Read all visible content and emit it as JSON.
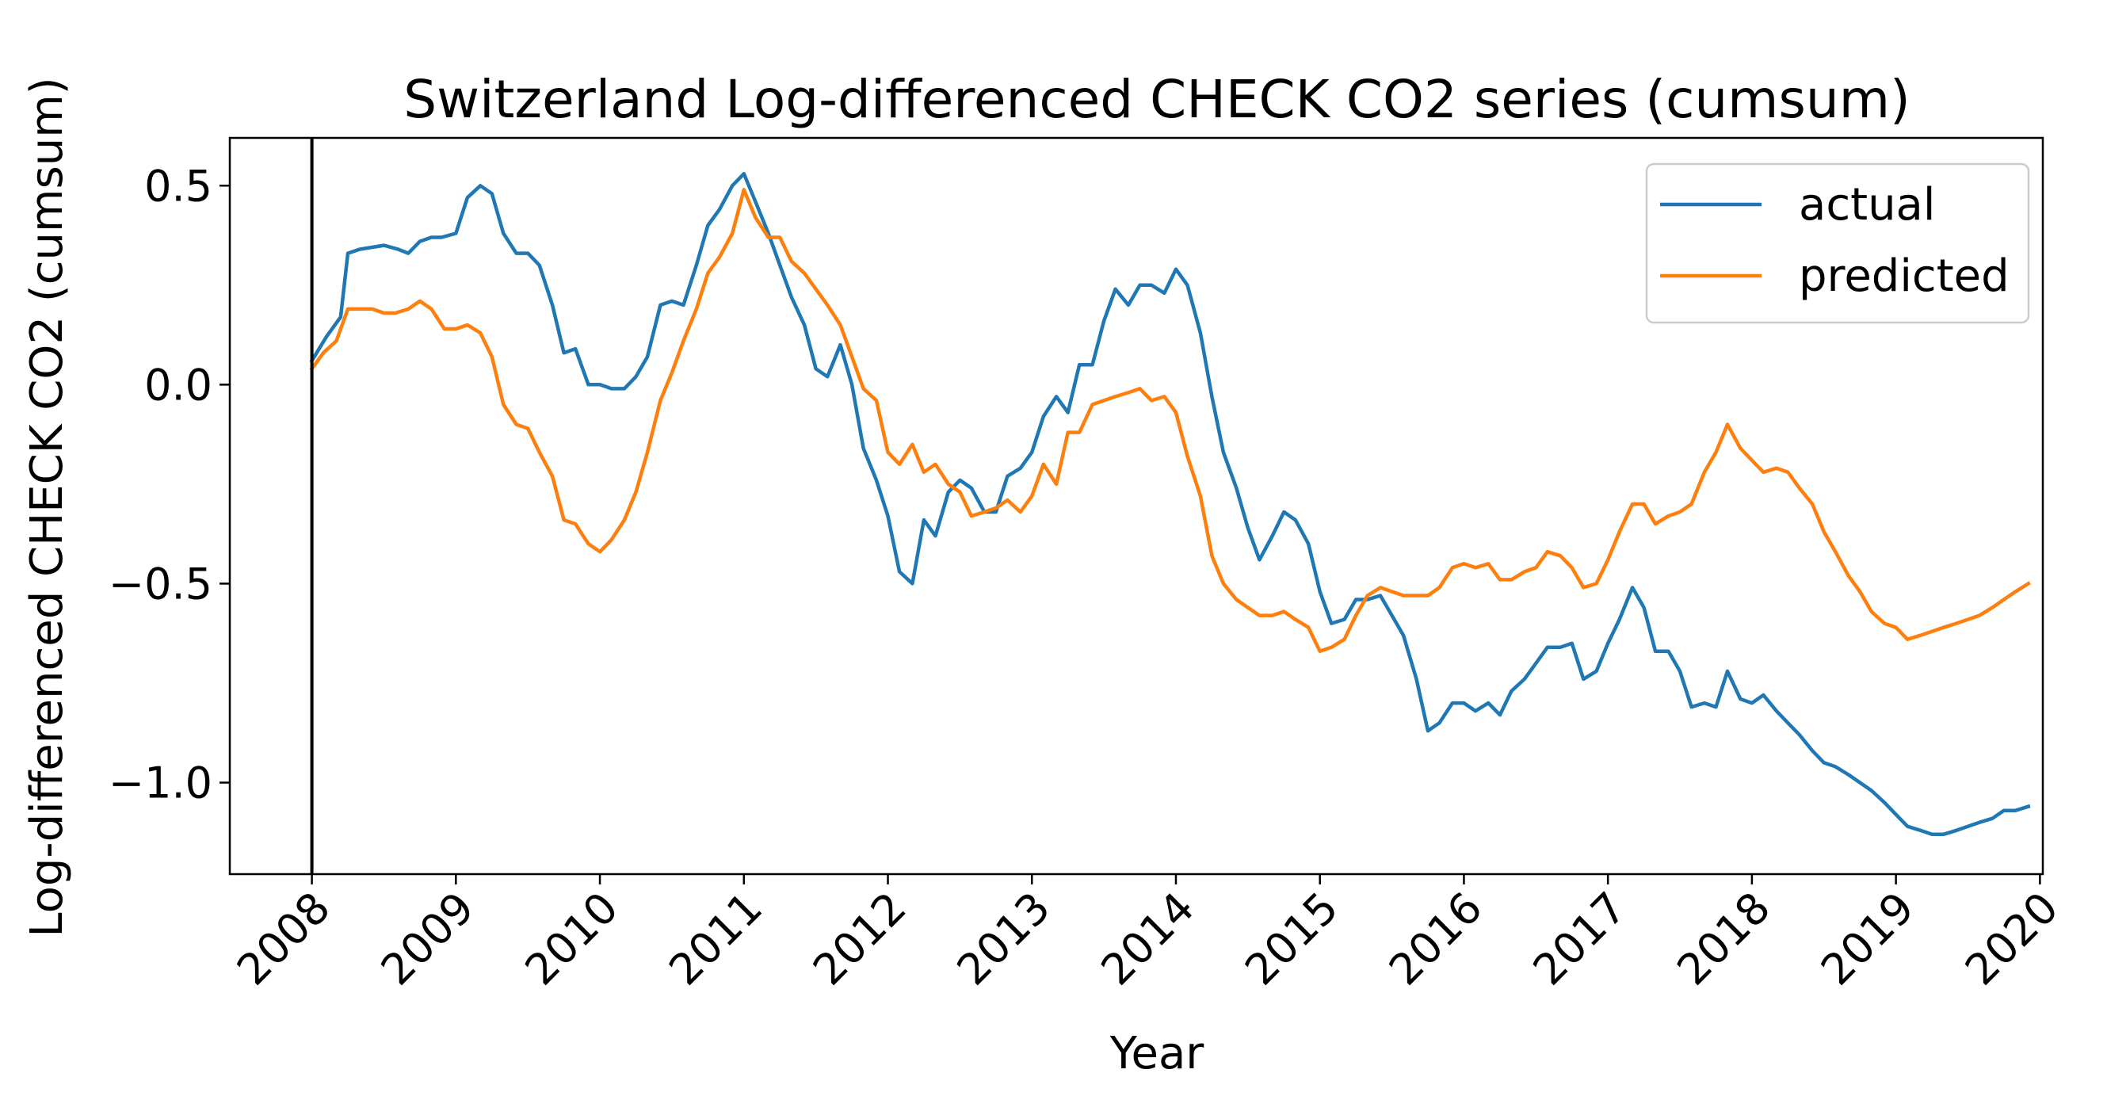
{
  "chart_data": {
    "type": "line",
    "title": "Switzerland Log-differenced CHECK CO2 series (cumsum)",
    "xlabel": "Year",
    "ylabel": "Log-differenced CHECK CO2 (cumsum)",
    "xlim": [
      2007.43,
      2020.02
    ],
    "ylim": [
      -1.23,
      0.62
    ],
    "x_ticks": [
      "2008",
      "2009",
      "2010",
      "2011",
      "2012",
      "2013",
      "2014",
      "2015",
      "2016",
      "2017",
      "2018",
      "2019",
      "2020"
    ],
    "y_ticks": [
      0.5,
      0.0,
      -0.5,
      -1.0
    ],
    "y_tick_labels": [
      "0.5",
      "0.0",
      "−0.5",
      "−1.0"
    ],
    "vertical_marker_x": 2008.0,
    "legend_position": "upper right",
    "series": [
      {
        "name": "actual",
        "color": "#1f77b4",
        "points": [
          [
            2008.0,
            0.06
          ],
          [
            2008.1,
            0.12
          ],
          [
            2008.2,
            0.17
          ],
          [
            2008.25,
            0.33
          ],
          [
            2008.33,
            0.34
          ],
          [
            2008.5,
            0.35
          ],
          [
            2008.6,
            0.34
          ],
          [
            2008.67,
            0.33
          ],
          [
            2008.75,
            0.36
          ],
          [
            2008.83,
            0.37
          ],
          [
            2008.9,
            0.37
          ],
          [
            2009.0,
            0.38
          ],
          [
            2009.08,
            0.47
          ],
          [
            2009.17,
            0.5
          ],
          [
            2009.25,
            0.48
          ],
          [
            2009.33,
            0.38
          ],
          [
            2009.42,
            0.33
          ],
          [
            2009.5,
            0.33
          ],
          [
            2009.58,
            0.3
          ],
          [
            2009.67,
            0.2
          ],
          [
            2009.75,
            0.08
          ],
          [
            2009.83,
            0.09
          ],
          [
            2009.92,
            0.0
          ],
          [
            2010.0,
            0.0
          ],
          [
            2010.08,
            -0.01
          ],
          [
            2010.17,
            -0.01
          ],
          [
            2010.25,
            0.02
          ],
          [
            2010.33,
            0.07
          ],
          [
            2010.42,
            0.2
          ],
          [
            2010.5,
            0.21
          ],
          [
            2010.58,
            0.2
          ],
          [
            2010.67,
            0.3
          ],
          [
            2010.75,
            0.4
          ],
          [
            2010.83,
            0.44
          ],
          [
            2010.92,
            0.5
          ],
          [
            2011.0,
            0.53
          ],
          [
            2011.08,
            0.46
          ],
          [
            2011.17,
            0.38
          ],
          [
            2011.25,
            0.3
          ],
          [
            2011.33,
            0.22
          ],
          [
            2011.42,
            0.15
          ],
          [
            2011.5,
            0.04
          ],
          [
            2011.58,
            0.02
          ],
          [
            2011.67,
            0.1
          ],
          [
            2011.75,
            0.0
          ],
          [
            2011.83,
            -0.16
          ],
          [
            2011.92,
            -0.24
          ],
          [
            2012.0,
            -0.33
          ],
          [
            2012.08,
            -0.47
          ],
          [
            2012.17,
            -0.5
          ],
          [
            2012.25,
            -0.34
          ],
          [
            2012.33,
            -0.38
          ],
          [
            2012.42,
            -0.27
          ],
          [
            2012.5,
            -0.24
          ],
          [
            2012.58,
            -0.26
          ],
          [
            2012.67,
            -0.32
          ],
          [
            2012.75,
            -0.32
          ],
          [
            2012.83,
            -0.23
          ],
          [
            2012.92,
            -0.21
          ],
          [
            2013.0,
            -0.17
          ],
          [
            2013.08,
            -0.08
          ],
          [
            2013.17,
            -0.03
          ],
          [
            2013.25,
            -0.07
          ],
          [
            2013.33,
            0.05
          ],
          [
            2013.42,
            0.05
          ],
          [
            2013.5,
            0.16
          ],
          [
            2013.58,
            0.24
          ],
          [
            2013.67,
            0.2
          ],
          [
            2013.75,
            0.25
          ],
          [
            2013.83,
            0.25
          ],
          [
            2013.92,
            0.23
          ],
          [
            2014.0,
            0.29
          ],
          [
            2014.08,
            0.25
          ],
          [
            2014.17,
            0.13
          ],
          [
            2014.25,
            -0.03
          ],
          [
            2014.33,
            -0.17
          ],
          [
            2014.42,
            -0.26
          ],
          [
            2014.5,
            -0.36
          ],
          [
            2014.58,
            -0.44
          ],
          [
            2014.67,
            -0.38
          ],
          [
            2014.75,
            -0.32
          ],
          [
            2014.83,
            -0.34
          ],
          [
            2014.92,
            -0.4
          ],
          [
            2015.0,
            -0.52
          ],
          [
            2015.08,
            -0.6
          ],
          [
            2015.17,
            -0.59
          ],
          [
            2015.25,
            -0.54
          ],
          [
            2015.33,
            -0.54
          ],
          [
            2015.42,
            -0.53
          ],
          [
            2015.5,
            -0.58
          ],
          [
            2015.58,
            -0.63
          ],
          [
            2015.67,
            -0.74
          ],
          [
            2015.75,
            -0.87
          ],
          [
            2015.83,
            -0.85
          ],
          [
            2015.92,
            -0.8
          ],
          [
            2016.0,
            -0.8
          ],
          [
            2016.08,
            -0.82
          ],
          [
            2016.17,
            -0.8
          ],
          [
            2016.25,
            -0.83
          ],
          [
            2016.33,
            -0.77
          ],
          [
            2016.42,
            -0.74
          ],
          [
            2016.5,
            -0.7
          ],
          [
            2016.58,
            -0.66
          ],
          [
            2016.67,
            -0.66
          ],
          [
            2016.75,
            -0.65
          ],
          [
            2016.83,
            -0.74
          ],
          [
            2016.92,
            -0.72
          ],
          [
            2017.0,
            -0.65
          ],
          [
            2017.08,
            -0.59
          ],
          [
            2017.17,
            -0.51
          ],
          [
            2017.25,
            -0.56
          ],
          [
            2017.33,
            -0.67
          ],
          [
            2017.42,
            -0.67
          ],
          [
            2017.5,
            -0.72
          ],
          [
            2017.58,
            -0.81
          ],
          [
            2017.67,
            -0.8
          ],
          [
            2017.75,
            -0.81
          ],
          [
            2017.83,
            -0.72
          ],
          [
            2017.92,
            -0.79
          ],
          [
            2018.0,
            -0.8
          ],
          [
            2018.08,
            -0.78
          ],
          [
            2018.17,
            -0.82
          ],
          [
            2018.25,
            -0.85
          ],
          [
            2018.33,
            -0.88
          ],
          [
            2018.42,
            -0.92
          ],
          [
            2018.5,
            -0.95
          ],
          [
            2018.58,
            -0.96
          ],
          [
            2018.67,
            -0.98
          ],
          [
            2018.75,
            -1.0
          ],
          [
            2018.83,
            -1.02
          ],
          [
            2018.92,
            -1.05
          ],
          [
            2019.0,
            -1.08
          ],
          [
            2019.08,
            -1.11
          ],
          [
            2019.17,
            -1.12
          ],
          [
            2019.25,
            -1.13
          ],
          [
            2019.33,
            -1.13
          ],
          [
            2019.42,
            -1.12
          ],
          [
            2019.5,
            -1.11
          ],
          [
            2019.58,
            -1.1
          ],
          [
            2019.67,
            -1.09
          ],
          [
            2019.75,
            -1.07
          ],
          [
            2019.83,
            -1.07
          ],
          [
            2019.92,
            -1.06
          ]
        ]
      },
      {
        "name": "predicted",
        "color": "#ff7f0e",
        "points": [
          [
            2008.0,
            0.04
          ],
          [
            2008.08,
            0.08
          ],
          [
            2008.17,
            0.11
          ],
          [
            2008.25,
            0.19
          ],
          [
            2008.33,
            0.19
          ],
          [
            2008.42,
            0.19
          ],
          [
            2008.5,
            0.18
          ],
          [
            2008.58,
            0.18
          ],
          [
            2008.67,
            0.19
          ],
          [
            2008.75,
            0.21
          ],
          [
            2008.83,
            0.19
          ],
          [
            2008.92,
            0.14
          ],
          [
            2009.0,
            0.14
          ],
          [
            2009.08,
            0.15
          ],
          [
            2009.17,
            0.13
          ],
          [
            2009.25,
            0.07
          ],
          [
            2009.33,
            -0.05
          ],
          [
            2009.42,
            -0.1
          ],
          [
            2009.5,
            -0.11
          ],
          [
            2009.58,
            -0.17
          ],
          [
            2009.67,
            -0.23
          ],
          [
            2009.75,
            -0.34
          ],
          [
            2009.83,
            -0.35
          ],
          [
            2009.92,
            -0.4
          ],
          [
            2010.0,
            -0.42
          ],
          [
            2010.08,
            -0.39
          ],
          [
            2010.17,
            -0.34
          ],
          [
            2010.25,
            -0.27
          ],
          [
            2010.33,
            -0.17
          ],
          [
            2010.42,
            -0.04
          ],
          [
            2010.5,
            0.03
          ],
          [
            2010.58,
            0.11
          ],
          [
            2010.67,
            0.19
          ],
          [
            2010.75,
            0.28
          ],
          [
            2010.83,
            0.32
          ],
          [
            2010.92,
            0.38
          ],
          [
            2011.0,
            0.49
          ],
          [
            2011.08,
            0.42
          ],
          [
            2011.17,
            0.37
          ],
          [
            2011.25,
            0.37
          ],
          [
            2011.33,
            0.31
          ],
          [
            2011.42,
            0.28
          ],
          [
            2011.5,
            0.24
          ],
          [
            2011.58,
            0.2
          ],
          [
            2011.67,
            0.15
          ],
          [
            2011.75,
            0.07
          ],
          [
            2011.83,
            -0.01
          ],
          [
            2011.92,
            -0.04
          ],
          [
            2012.0,
            -0.17
          ],
          [
            2012.08,
            -0.2
          ],
          [
            2012.17,
            -0.15
          ],
          [
            2012.25,
            -0.22
          ],
          [
            2012.33,
            -0.2
          ],
          [
            2012.42,
            -0.25
          ],
          [
            2012.5,
            -0.27
          ],
          [
            2012.58,
            -0.33
          ],
          [
            2012.67,
            -0.32
          ],
          [
            2012.75,
            -0.31
          ],
          [
            2012.83,
            -0.29
          ],
          [
            2012.92,
            -0.32
          ],
          [
            2013.0,
            -0.28
          ],
          [
            2013.08,
            -0.2
          ],
          [
            2013.17,
            -0.25
          ],
          [
            2013.25,
            -0.12
          ],
          [
            2013.33,
            -0.12
          ],
          [
            2013.42,
            -0.05
          ],
          [
            2013.5,
            -0.04
          ],
          [
            2013.58,
            -0.03
          ],
          [
            2013.67,
            -0.02
          ],
          [
            2013.75,
            -0.01
          ],
          [
            2013.83,
            -0.04
          ],
          [
            2013.92,
            -0.03
          ],
          [
            2014.0,
            -0.07
          ],
          [
            2014.08,
            -0.18
          ],
          [
            2014.17,
            -0.28
          ],
          [
            2014.25,
            -0.43
          ],
          [
            2014.33,
            -0.5
          ],
          [
            2014.42,
            -0.54
          ],
          [
            2014.5,
            -0.56
          ],
          [
            2014.58,
            -0.58
          ],
          [
            2014.67,
            -0.58
          ],
          [
            2014.75,
            -0.57
          ],
          [
            2014.83,
            -0.59
          ],
          [
            2014.92,
            -0.61
          ],
          [
            2015.0,
            -0.67
          ],
          [
            2015.08,
            -0.66
          ],
          [
            2015.17,
            -0.64
          ],
          [
            2015.25,
            -0.58
          ],
          [
            2015.33,
            -0.53
          ],
          [
            2015.42,
            -0.51
          ],
          [
            2015.5,
            -0.52
          ],
          [
            2015.58,
            -0.53
          ],
          [
            2015.67,
            -0.53
          ],
          [
            2015.75,
            -0.53
          ],
          [
            2015.83,
            -0.51
          ],
          [
            2015.92,
            -0.46
          ],
          [
            2016.0,
            -0.45
          ],
          [
            2016.08,
            -0.46
          ],
          [
            2016.17,
            -0.45
          ],
          [
            2016.25,
            -0.49
          ],
          [
            2016.33,
            -0.49
          ],
          [
            2016.42,
            -0.47
          ],
          [
            2016.5,
            -0.46
          ],
          [
            2016.58,
            -0.42
          ],
          [
            2016.67,
            -0.43
          ],
          [
            2016.75,
            -0.46
          ],
          [
            2016.83,
            -0.51
          ],
          [
            2016.92,
            -0.5
          ],
          [
            2017.0,
            -0.44
          ],
          [
            2017.08,
            -0.37
          ],
          [
            2017.17,
            -0.3
          ],
          [
            2017.25,
            -0.3
          ],
          [
            2017.33,
            -0.35
          ],
          [
            2017.42,
            -0.33
          ],
          [
            2017.5,
            -0.32
          ],
          [
            2017.58,
            -0.3
          ],
          [
            2017.67,
            -0.22
          ],
          [
            2017.75,
            -0.17
          ],
          [
            2017.83,
            -0.1
          ],
          [
            2017.92,
            -0.16
          ],
          [
            2018.0,
            -0.19
          ],
          [
            2018.08,
            -0.22
          ],
          [
            2018.17,
            -0.21
          ],
          [
            2018.25,
            -0.22
          ],
          [
            2018.33,
            -0.26
          ],
          [
            2018.42,
            -0.3
          ],
          [
            2018.5,
            -0.37
          ],
          [
            2018.58,
            -0.42
          ],
          [
            2018.67,
            -0.48
          ],
          [
            2018.75,
            -0.52
          ],
          [
            2018.83,
            -0.57
          ],
          [
            2018.92,
            -0.6
          ],
          [
            2019.0,
            -0.61
          ],
          [
            2019.08,
            -0.64
          ],
          [
            2019.17,
            -0.63
          ],
          [
            2019.25,
            -0.62
          ],
          [
            2019.33,
            -0.61
          ],
          [
            2019.42,
            -0.6
          ],
          [
            2019.5,
            -0.59
          ],
          [
            2019.58,
            -0.58
          ],
          [
            2019.67,
            -0.56
          ],
          [
            2019.75,
            -0.54
          ],
          [
            2019.83,
            -0.52
          ],
          [
            2019.92,
            -0.5
          ]
        ]
      }
    ]
  }
}
